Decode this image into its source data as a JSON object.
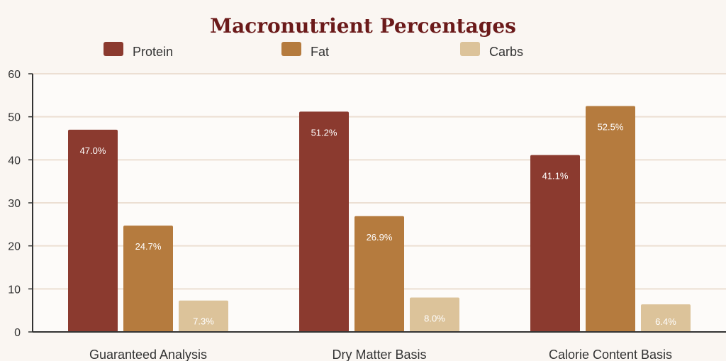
{
  "chart_data": {
    "type": "bar",
    "title": "Macronutrient Percentages",
    "categories": [
      "Guaranteed Analysis",
      "Dry Matter Basis",
      "Calorie Content Basis"
    ],
    "series": [
      {
        "name": "Protein",
        "color": "#8b3a2f",
        "values": [
          47.0,
          51.2,
          41.1
        ],
        "labels": [
          "47.0%",
          "51.2%",
          "41.1%"
        ]
      },
      {
        "name": "Fat",
        "color": "#b57b3e",
        "values": [
          24.7,
          26.9,
          52.5
        ],
        "labels": [
          "24.7%",
          "26.9%",
          "52.5%"
        ]
      },
      {
        "name": "Carbs",
        "color": "#dcc39a",
        "values": [
          7.3,
          8.0,
          6.4
        ],
        "labels": [
          "7.3%",
          "8.0%",
          "6.4%"
        ]
      }
    ],
    "ylim": [
      0,
      60
    ],
    "yticks": [
      "0",
      "10",
      "20",
      "30",
      "40",
      "50",
      "60"
    ],
    "grid": true,
    "legend": "top",
    "xlabel": "",
    "ylabel": ""
  },
  "colors": {
    "background": "#faf6f2",
    "plot_background": "#fdfbf9",
    "grid": "#ecdfd3",
    "axis": "#333333",
    "title": "#6b1a1a"
  }
}
